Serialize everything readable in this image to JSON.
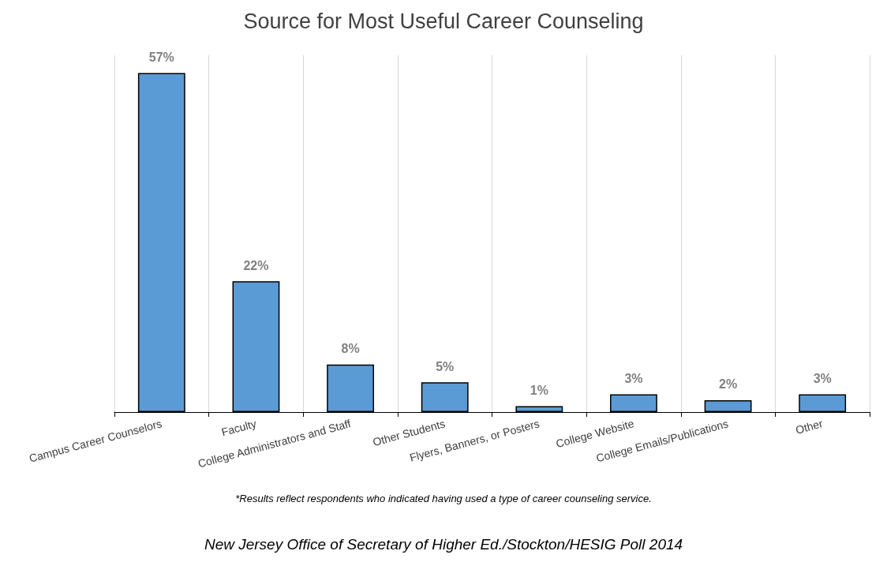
{
  "chart_data": {
    "type": "bar",
    "title": "Source for Most Useful Career Counseling",
    "categories": [
      "Campus Career Counselors",
      "Faculty",
      "College Administrators and Staff",
      "Other Students",
      "Flyers, Banners, or Posters",
      "College Website",
      "College Emails/Publications",
      "Other"
    ],
    "values": [
      57,
      22,
      8,
      5,
      1,
      3,
      2,
      3
    ],
    "value_labels": [
      "57%",
      "22%",
      "8%",
      "5%",
      "1%",
      "3%",
      "2%",
      "3%"
    ],
    "color": "#5b9bd5",
    "grid": "x",
    "annotations": [
      "*Results reflect respondents who indicated having used a type of career counseling service.",
      "New Jersey Office of Secretary of Higher Ed./Stockton/HESIG Poll 2014"
    ]
  }
}
